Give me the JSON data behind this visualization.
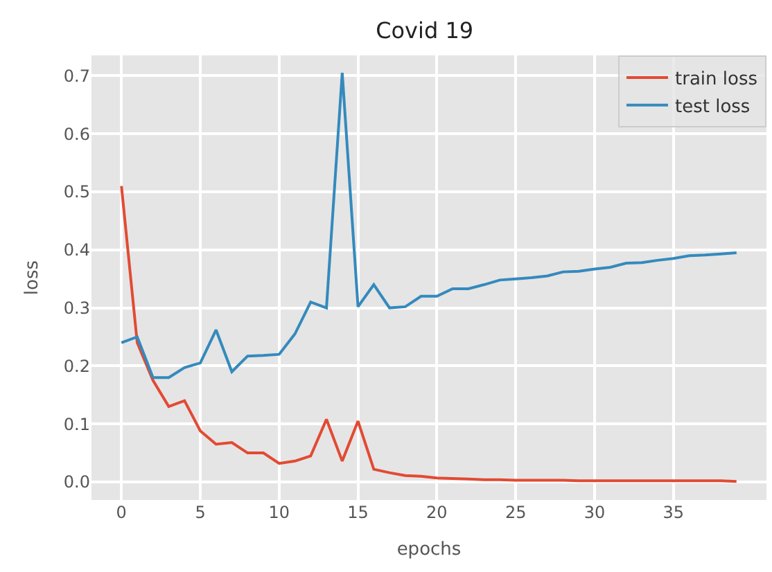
{
  "chart_data": {
    "type": "line",
    "title": "Covid 19",
    "xlabel": "epochs",
    "ylabel": "loss",
    "x": [
      0,
      1,
      2,
      3,
      4,
      5,
      6,
      7,
      8,
      9,
      10,
      11,
      12,
      13,
      14,
      15,
      16,
      17,
      18,
      19,
      20,
      21,
      22,
      23,
      24,
      25,
      26,
      27,
      28,
      29,
      30,
      31,
      32,
      33,
      34,
      35,
      36,
      37,
      38,
      39
    ],
    "series": [
      {
        "name": "train loss",
        "color": "#e24a33",
        "values": [
          0.51,
          0.24,
          0.175,
          0.13,
          0.14,
          0.088,
          0.065,
          0.068,
          0.05,
          0.05,
          0.032,
          0.036,
          0.045,
          0.108,
          0.036,
          0.105,
          0.022,
          0.016,
          0.011,
          0.01,
          0.007,
          0.006,
          0.005,
          0.004,
          0.004,
          0.003,
          0.003,
          0.003,
          0.003,
          0.002,
          0.002,
          0.002,
          0.002,
          0.002,
          0.002,
          0.002,
          0.002,
          0.002,
          0.002,
          0.001
        ]
      },
      {
        "name": "test loss",
        "color": "#348abd",
        "values": [
          0.24,
          0.25,
          0.18,
          0.18,
          0.197,
          0.205,
          0.262,
          0.19,
          0.217,
          0.218,
          0.22,
          0.255,
          0.31,
          0.3,
          0.705,
          0.302,
          0.34,
          0.3,
          0.302,
          0.32,
          0.32,
          0.333,
          0.333,
          0.34,
          0.348,
          0.35,
          0.352,
          0.355,
          0.362,
          0.363,
          0.367,
          0.37,
          0.377,
          0.378,
          0.382,
          0.385,
          0.39,
          0.391,
          0.393,
          0.395
        ]
      }
    ],
    "xlim": [
      -1.9,
      40.9
    ],
    "ylim": [
      -0.031,
      0.735
    ],
    "xticks": [
      0,
      5,
      10,
      15,
      20,
      25,
      30,
      35
    ],
    "yticks": [
      {
        "value": 0,
        "label": "0.0"
      },
      0.1,
      0.2,
      0.3,
      0.4,
      0.5,
      0.6,
      0.7
    ],
    "grid": true,
    "legend": "top right",
    "marker": "none",
    "line_style": "solid"
  }
}
